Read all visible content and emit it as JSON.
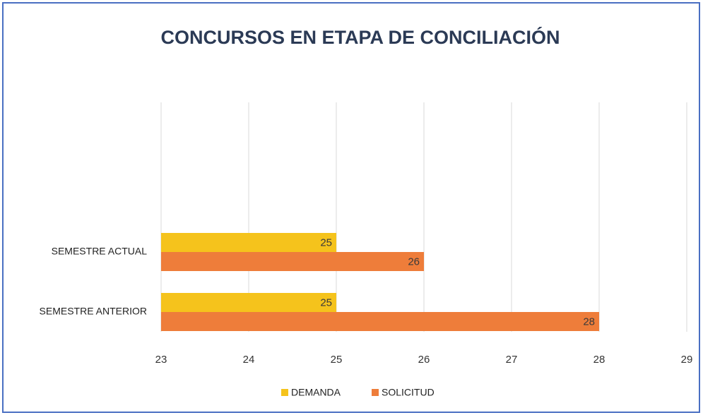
{
  "chart_data": {
    "type": "bar",
    "orientation": "horizontal",
    "title": "CONCURSOS EN ETAPA DE CONCILIACIÓN",
    "categories": [
      "SEMESTRE ACTUAL",
      "SEMESTRE ANTERIOR"
    ],
    "series": [
      {
        "name": "DEMANDA",
        "color": "#f5c31c",
        "values": [
          25,
          25
        ]
      },
      {
        "name": "SOLICITUD",
        "color": "#ee7d3a",
        "values": [
          26,
          28
        ]
      }
    ],
    "xlim": [
      23,
      29
    ],
    "xticks": [
      23,
      24,
      25,
      26,
      27,
      28,
      29
    ],
    "grid": true,
    "legend": "bottom"
  }
}
